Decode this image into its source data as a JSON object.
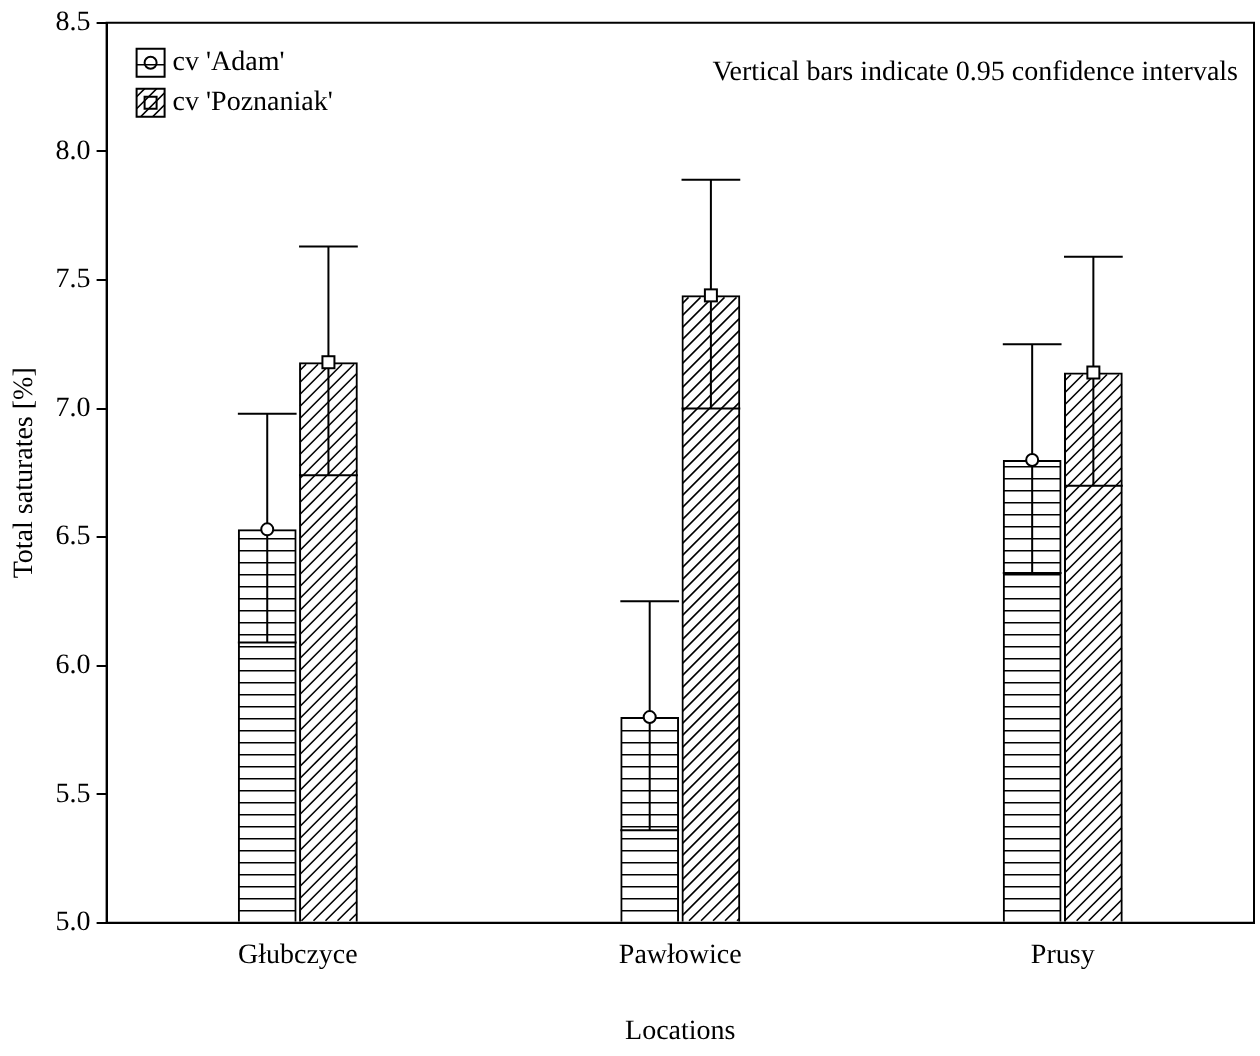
{
  "chart_data": {
    "type": "bar",
    "xlabel": "Locations",
    "ylabel": "Total saturates [%]",
    "categories": [
      "Głubczyce",
      "Pawłowice",
      "Prusy"
    ],
    "series": [
      {
        "name": "cv 'Adam'",
        "color": "#000000",
        "values": [
          6.53,
          5.8,
          6.8
        ],
        "errors": [
          [
            6.09,
            6.98
          ],
          [
            5.36,
            6.25
          ],
          [
            6.36,
            7.25
          ]
        ],
        "marker": "circle"
      },
      {
        "name": "cv 'Poznaniak'",
        "color": "#000000",
        "values": [
          7.18,
          7.44,
          7.14
        ],
        "errors": [
          [
            6.74,
            7.63
          ],
          [
            7.0,
            7.89
          ],
          [
            6.7,
            7.59
          ]
        ],
        "marker": "square"
      }
    ],
    "ylim": [
      5.0,
      8.5
    ],
    "yticks": [
      {
        "value": 5.0,
        "label": "5.0"
      },
      {
        "value": 5.5,
        "label": "5.5"
      },
      {
        "value": 6.0,
        "label": "6.0"
      },
      {
        "value": 6.5,
        "label": "6.5"
      },
      {
        "value": 7.0,
        "label": "7.0"
      },
      {
        "value": 7.5,
        "label": "7.5"
      },
      {
        "value": 8.0,
        "label": "8.0"
      },
      {
        "value": 8.5,
        "label": "8.5"
      }
    ],
    "grid": false,
    "legend": "top left",
    "annotations": [
      "Vertical bars indicate 0.95 confidence intervals"
    ]
  }
}
